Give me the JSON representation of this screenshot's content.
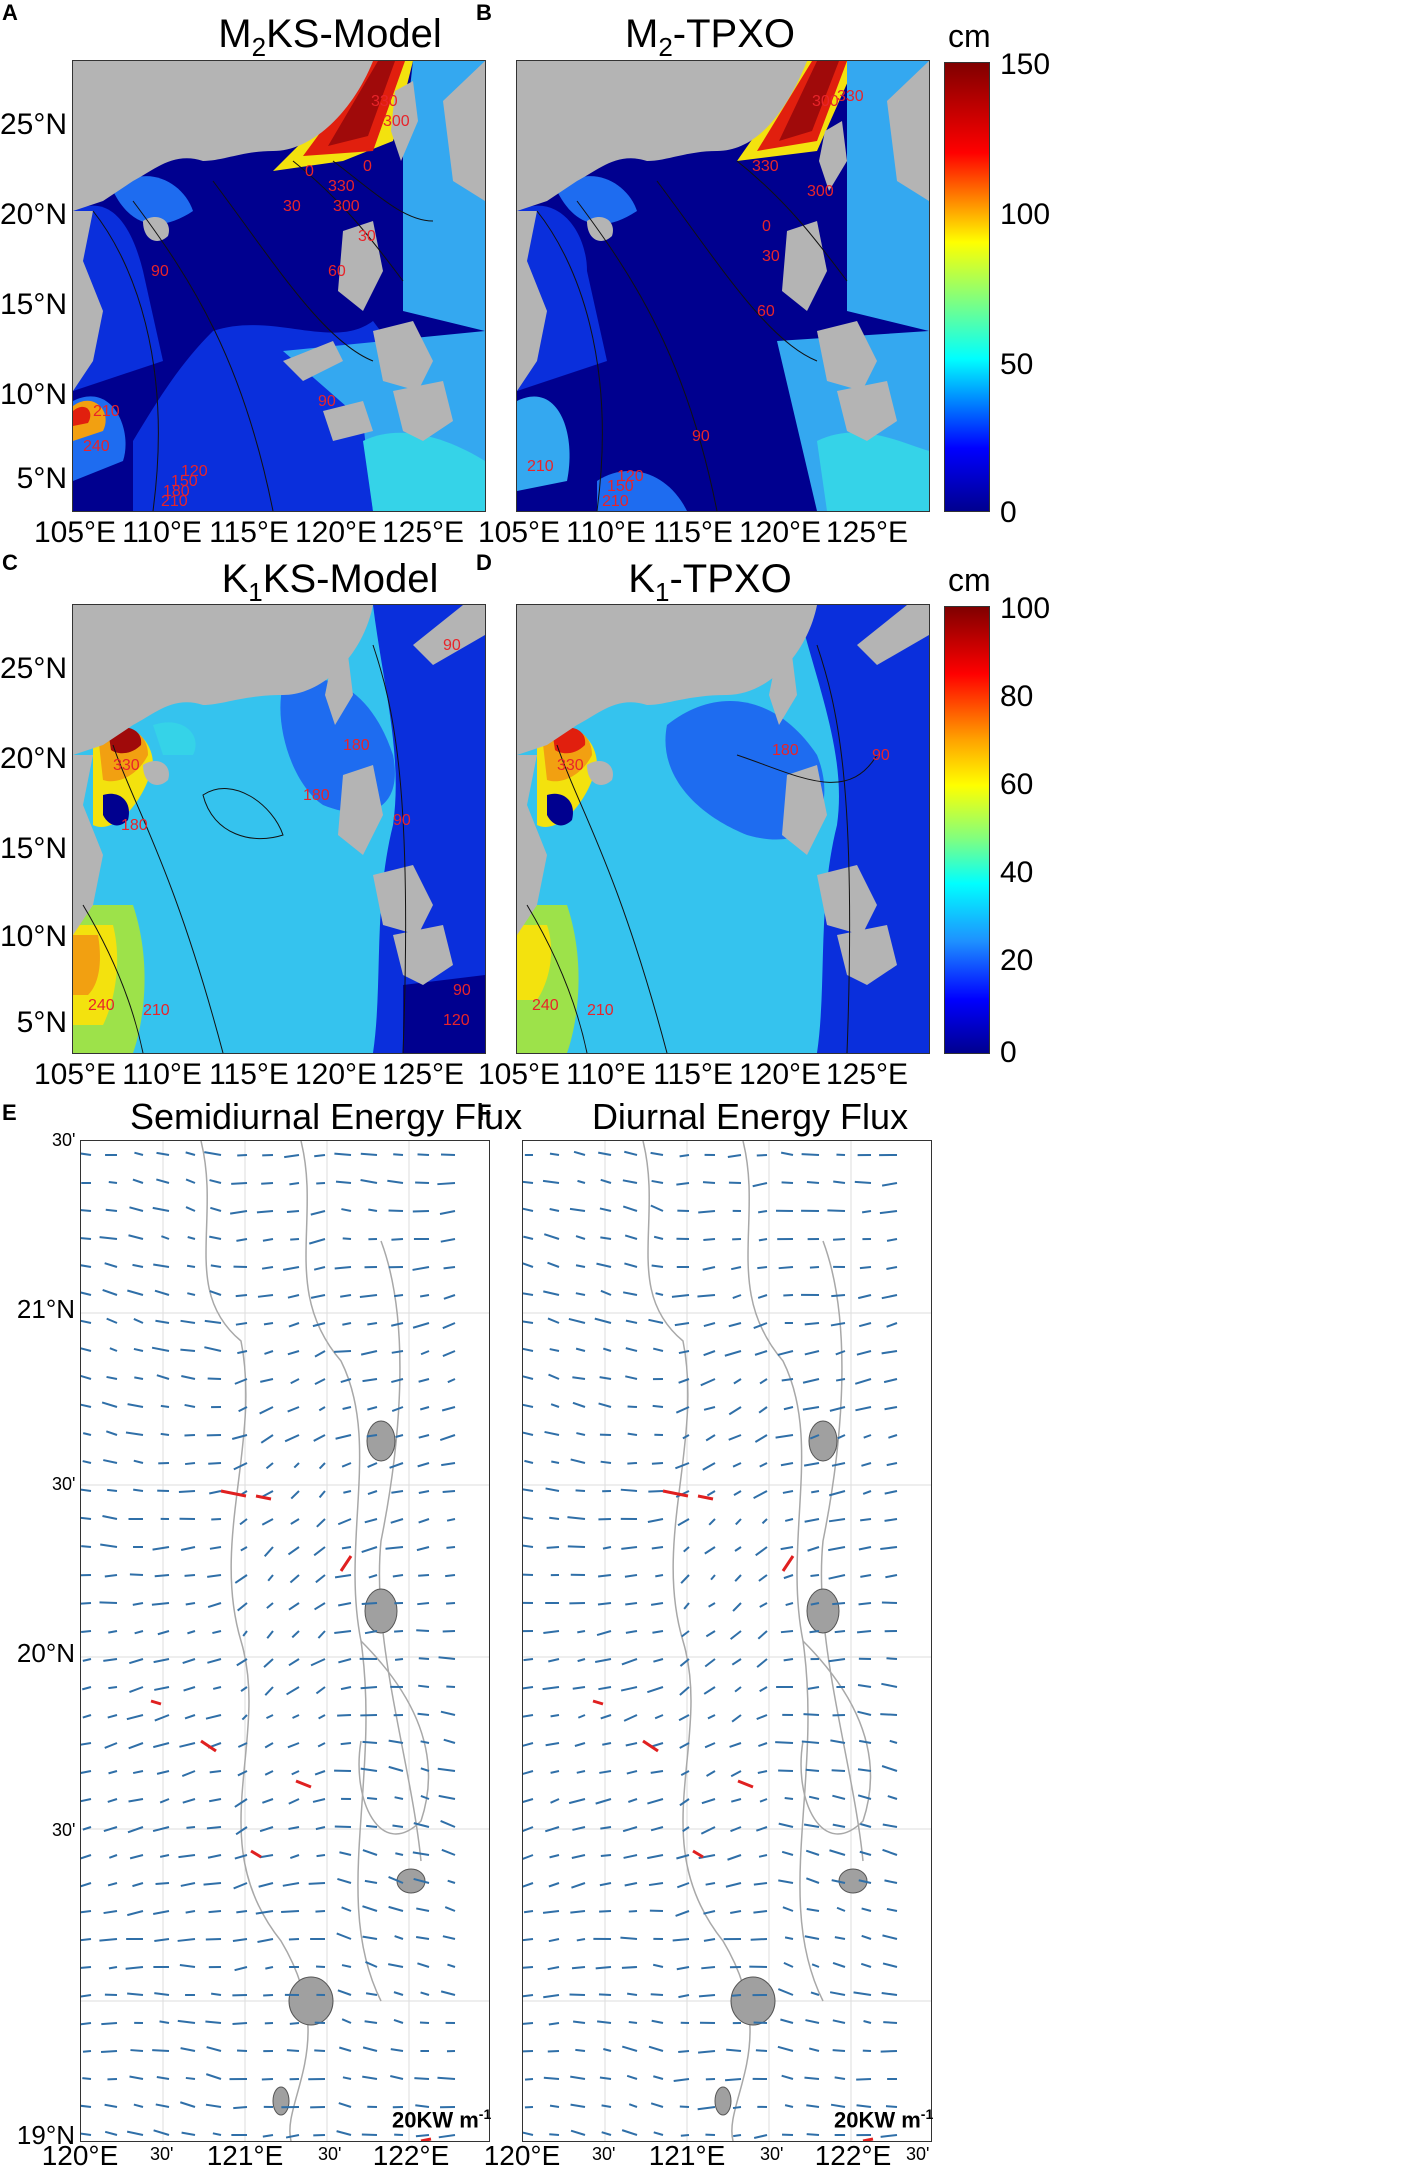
{
  "panels": {
    "A": {
      "letter": "A",
      "title_main": "M",
      "title_sub": "2",
      "title_rest": "KS-Model"
    },
    "B": {
      "letter": "B",
      "title_main": "M",
      "title_sub": "2",
      "title_rest": "-TPXO"
    },
    "C": {
      "letter": "C",
      "title_main": "K",
      "title_sub": "1",
      "title_rest": "KS-Model"
    },
    "D": {
      "letter": "D",
      "title_main": "K",
      "title_sub": "1",
      "title_rest": "-TPXO"
    },
    "E": {
      "letter": "E",
      "title": "Semidiurnal Energy Flux"
    },
    "F": {
      "letter": "F",
      "title": "Diurnal Energy Flux"
    }
  },
  "map_axes": {
    "lat_labels": [
      "25°N",
      "20°N",
      "15°N",
      "10°N",
      "5°N"
    ],
    "lon_labels": [
      "105°E",
      "110°E",
      "115°E",
      "120°E",
      "125°E"
    ]
  },
  "colorbar_top": {
    "unit": "cm",
    "ticks": [
      "150",
      "100",
      "50",
      "0"
    ]
  },
  "colorbar_bottom": {
    "unit": "cm",
    "ticks": [
      "100",
      "80",
      "60",
      "40",
      "20",
      "0"
    ]
  },
  "contour_labels": {
    "A": [
      "330",
      "300",
      "0",
      "30",
      "60",
      "90",
      "210",
      "240",
      "120",
      "150",
      "180",
      "210",
      "90",
      "300",
      "330",
      "0",
      "30"
    ],
    "B": [
      "300",
      "330",
      "330",
      "0",
      "30",
      "60",
      "90",
      "210",
      "120",
      "150",
      "210",
      "300"
    ],
    "C": [
      "90",
      "180",
      "180",
      "90",
      "330",
      "180",
      "240",
      "210",
      "90",
      "120"
    ],
    "D": [
      "180",
      "90",
      "330",
      "240",
      "210"
    ]
  },
  "flux_axes": {
    "lat_labels": [
      "21°N",
      "20°N",
      "19°N"
    ],
    "min_labels": [
      "30'",
      "30'",
      "30'"
    ],
    "lon_labels": [
      "120°E",
      "121°E",
      "122°E"
    ],
    "lon_min_labels": [
      "30'",
      "30'",
      "30'"
    ],
    "scale_label": "20KW m",
    "scale_exp": "-1"
  },
  "colors": {
    "land": "#b4b4b4",
    "deep_blue": "#00008f",
    "blue": "#0a2fdc",
    "mid_blue": "#1e6cf0",
    "light_blue": "#34a8f0",
    "cyan": "#35d3e8",
    "arrow_blue": "#2f6fa8",
    "arrow_red": "#e02020",
    "contour_red": "#e8242a"
  }
}
